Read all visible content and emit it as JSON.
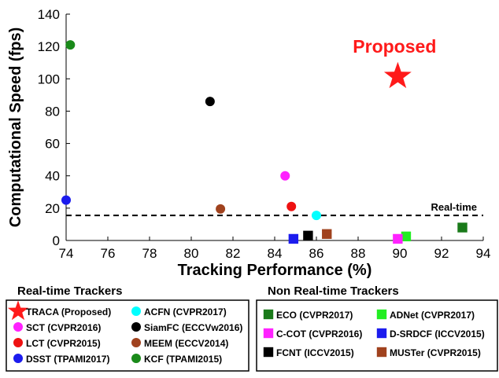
{
  "chart_data": {
    "type": "scatter",
    "xlabel": "Tracking Performance (%)",
    "ylabel": "Computational Speed (fps)",
    "xlim": [
      74,
      94
    ],
    "ylim": [
      0,
      140
    ],
    "xticks": [
      "74",
      "76",
      "78",
      "80",
      "82",
      "84",
      "86",
      "88",
      "90",
      "92",
      "94"
    ],
    "yticks": [
      "0",
      "20",
      "40",
      "60",
      "80",
      "100",
      "120",
      "140"
    ],
    "reference_line": {
      "y": 15.5,
      "label": "Real-time"
    },
    "annotation": {
      "text": "Proposed",
      "color": "#ff1a1a"
    },
    "legend_groups": [
      {
        "title": "Real-time Trackers",
        "columns": 2
      },
      {
        "title": "Non Real-time Trackers",
        "columns": 2
      }
    ],
    "series": [
      {
        "name": "TRACA (Proposed)",
        "group": 0,
        "marker": "star",
        "color": "#ff1a1a",
        "x": 89.9,
        "y": 101.5
      },
      {
        "name": "ACFN (CVPR2017)",
        "group": 0,
        "marker": "circle",
        "color": "#00ffff",
        "x": 86.0,
        "y": 15.5
      },
      {
        "name": "SCT (CVPR2016)",
        "group": 0,
        "marker": "circle",
        "color": "#ff22ff",
        "x": 84.5,
        "y": 40.0
      },
      {
        "name": "SiamFC (ECCVw2016)",
        "group": 0,
        "marker": "circle",
        "color": "#000000",
        "x": 80.9,
        "y": 86.0
      },
      {
        "name": "LCT (CVPR2015)",
        "group": 0,
        "marker": "circle",
        "color": "#ee1111",
        "x": 84.8,
        "y": 21.0
      },
      {
        "name": "MEEM (ECCV2014)",
        "group": 0,
        "marker": "circle",
        "color": "#a0421e",
        "x": 81.4,
        "y": 19.5
      },
      {
        "name": "DSST (TPAMI2017)",
        "group": 0,
        "marker": "circle",
        "color": "#1c1cee",
        "x": 74.0,
        "y": 25.0
      },
      {
        "name": "KCF (TPAMI2015)",
        "group": 0,
        "marker": "circle",
        "color": "#1a8a1a",
        "x": 74.2,
        "y": 121.0
      },
      {
        "name": "ECO (CVPR2017)",
        "group": 1,
        "marker": "square",
        "color": "#1a7a1a",
        "x": 93.0,
        "y": 8.0
      },
      {
        "name": "ADNet (CVPR2017)",
        "group": 1,
        "marker": "square",
        "color": "#22ee22",
        "x": 90.3,
        "y": 2.5
      },
      {
        "name": "C-COT (CVPR2016)",
        "group": 1,
        "marker": "square",
        "color": "#ff22ff",
        "x": 89.9,
        "y": 1.0
      },
      {
        "name": "D-SRDCF (ICCV2015)",
        "group": 1,
        "marker": "square",
        "color": "#1c1cee",
        "x": 84.9,
        "y": 1.0
      },
      {
        "name": "FCNT (ICCV2015)",
        "group": 1,
        "marker": "square",
        "color": "#000000",
        "x": 85.6,
        "y": 3.0
      },
      {
        "name": "MUSTer (CVPR2015)",
        "group": 1,
        "marker": "square",
        "color": "#a0421e",
        "x": 86.5,
        "y": 4.0
      }
    ]
  }
}
